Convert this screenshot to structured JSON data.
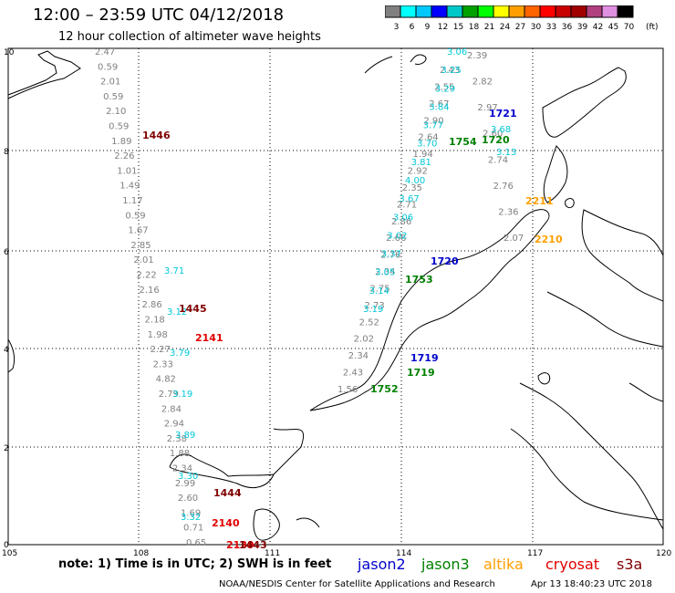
{
  "header": {
    "title": "12:00 – 23:59 UTC 04/12/2018",
    "subtitle": "12 hour collection of altimeter wave heights"
  },
  "colorbar": {
    "unit": "(ft)",
    "labels": [
      "3",
      "6",
      "9",
      "12",
      "15",
      "18",
      "21",
      "24",
      "27",
      "30",
      "33",
      "36",
      "39",
      "42",
      "45",
      "70"
    ],
    "colors": [
      "#808080",
      "#00ffff",
      "#00c8ff",
      "#0000ff",
      "#00c8c8",
      "#00a000",
      "#00ff00",
      "#ffff00",
      "#ffa000",
      "#ff6400",
      "#ff0000",
      "#c80000",
      "#a00000",
      "#b04080",
      "#e090e0",
      "#000000"
    ]
  },
  "axes": {
    "x_ticks": [
      "105",
      "108",
      "111",
      "114",
      "117",
      "120"
    ],
    "y_ticks": [
      "10",
      "8",
      "6",
      "4",
      "2",
      "0"
    ]
  },
  "legend": [
    {
      "name": "jason2",
      "color": "#0000cc"
    },
    {
      "name": "jason3",
      "color": "#008000"
    },
    {
      "name": "altika",
      "color": "#ffa000"
    },
    {
      "name": "cryosat",
      "color": "#e00000"
    },
    {
      "name": "s3a",
      "color": "#800000"
    }
  ],
  "footnote": "note: 1) Time is in UTC; 2) SWH is in feet",
  "credit": {
    "left": "NOAA/NESDIS Center for Satellite Applications and Research",
    "right": "Apr 13 18:40:23 UTC 2018"
  },
  "tracks": {
    "west_values": [
      "2.47",
      "0.59",
      "2.01",
      "0.59",
      "2.10",
      "0.59",
      "1.89",
      "2.26",
      "1.01",
      "1.49",
      "1.17",
      "0.59",
      "1.67",
      "2.85",
      "2.01",
      "2.22",
      "2.16",
      "2.86",
      "2.18",
      "1.98",
      "2.27",
      "2.33",
      "4.82",
      "2.79",
      "2.84",
      "2.94",
      "2.38",
      "1.88",
      "2.34",
      "2.99",
      "2.60",
      "1.69",
      "0.71",
      "0.65"
    ],
    "west_cyan_values": [
      "3.71",
      "3.12",
      "3.79",
      "3.19",
      "3.89",
      "3.30",
      "3.32"
    ],
    "east_values": [
      "2.43",
      "2.55",
      "2.67",
      "2.90",
      "2.64",
      "1.94",
      "2.92",
      "2.35",
      "2.71",
      "2.86",
      "2.66",
      "2.76",
      "2.34",
      "2.75",
      "2.73",
      "2.52",
      "2.02",
      "2.34",
      "2.43",
      "1.56"
    ],
    "east_cyan_values": [
      "3.06",
      "3.25",
      "3.29",
      "3.84",
      "3.77",
      "3.70",
      "3.81",
      "4.00",
      "3.67",
      "3.06",
      "3.02",
      "3.37",
      "3.05",
      "3.14",
      "3.19"
    ],
    "far_east_values": [
      "2.39",
      "2.82",
      "2.97",
      "2.60",
      "2.74",
      "2.76",
      "2.36",
      "2.07"
    ],
    "far_east_cyan_values": [
      "3.68",
      "3.13"
    ]
  },
  "pass_labels": [
    {
      "text": "1446",
      "color": "#800000"
    },
    {
      "text": "1445",
      "color": "#800000"
    },
    {
      "text": "2141",
      "color": "#e00000"
    },
    {
      "text": "1444",
      "color": "#800000"
    },
    {
      "text": "2140",
      "color": "#e00000"
    },
    {
      "text": "2139",
      "color": "#e00000"
    },
    {
      "text": "1443",
      "color": "#800000"
    },
    {
      "text": "1721",
      "color": "#0000cc"
    },
    {
      "text": "1754",
      "color": "#008000"
    },
    {
      "text": "1720",
      "color": "#008000"
    },
    {
      "text": "1720",
      "color": "#0000cc"
    },
    {
      "text": "1753",
      "color": "#008000"
    },
    {
      "text": "1719",
      "color": "#0000cc"
    },
    {
      "text": "1719",
      "color": "#008000"
    },
    {
      "text": "1752",
      "color": "#008000"
    },
    {
      "text": "2211",
      "color": "#ffa000"
    },
    {
      "text": "2210",
      "color": "#ffa000"
    }
  ]
}
